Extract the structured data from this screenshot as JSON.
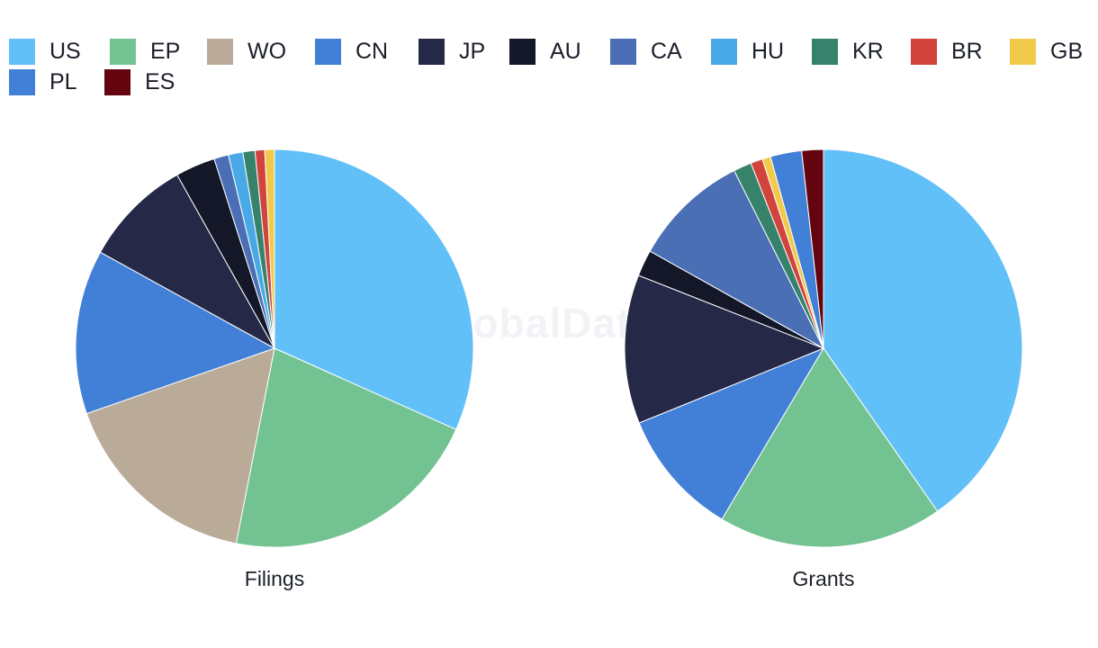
{
  "watermark": "GlobalData",
  "chart_data": [
    {
      "type": "pie",
      "title": "Filings",
      "categories": [
        "US",
        "EP",
        "WO",
        "CN",
        "JP",
        "AU",
        "CA",
        "HU",
        "KR",
        "BR",
        "GB",
        "PL",
        "ES"
      ],
      "colors": [
        "#62c0f8",
        "#72c391",
        "#b9ab98",
        "#427fd6",
        "#262848",
        "#131728",
        "#4a6fb5",
        "#48a9e6",
        "#37826a",
        "#d1443e",
        "#f1ca4b",
        "#427fd6",
        "#63040f"
      ],
      "values": [
        32.3,
        21.8,
        16.9,
        13.6,
        9.0,
        3.3,
        1.2,
        1.2,
        1.0,
        0.8,
        0.8,
        0,
        0
      ]
    },
    {
      "type": "pie",
      "title": "Grants",
      "categories": [
        "US",
        "EP",
        "WO",
        "CN",
        "JP",
        "AU",
        "CA",
        "HU",
        "KR",
        "BR",
        "GB",
        "PL",
        "ES"
      ],
      "colors": [
        "#62c0f8",
        "#72c391",
        "#b9ab98",
        "#427fd6",
        "#262848",
        "#131728",
        "#4a6fb5",
        "#48a9e6",
        "#37826a",
        "#d1443e",
        "#f1ca4b",
        "#427fd6",
        "#63040f"
      ],
      "values": [
        41.3,
        18.7,
        0,
        10.6,
        12.4,
        2.2,
        9.7,
        0,
        1.5,
        1.0,
        0.7,
        2.6,
        1.8
      ]
    }
  ],
  "legend": {
    "items": [
      {
        "label": "US",
        "color": "#62c0f8"
      },
      {
        "label": "EP",
        "color": "#72c391"
      },
      {
        "label": "WO",
        "color": "#b9ab98"
      },
      {
        "label": "CN",
        "color": "#427fd6"
      },
      {
        "label": "JP",
        "color": "#262848"
      },
      {
        "label": "AU",
        "color": "#131728"
      },
      {
        "label": "CA",
        "color": "#4a6fb5"
      },
      {
        "label": "HU",
        "color": "#48a9e6"
      },
      {
        "label": "KR",
        "color": "#37826a"
      },
      {
        "label": "BR",
        "color": "#d1443e"
      },
      {
        "label": "GB",
        "color": "#f1ca4b"
      },
      {
        "label": "PL",
        "color": "#427fd6"
      },
      {
        "label": "ES",
        "color": "#63040f"
      }
    ]
  }
}
